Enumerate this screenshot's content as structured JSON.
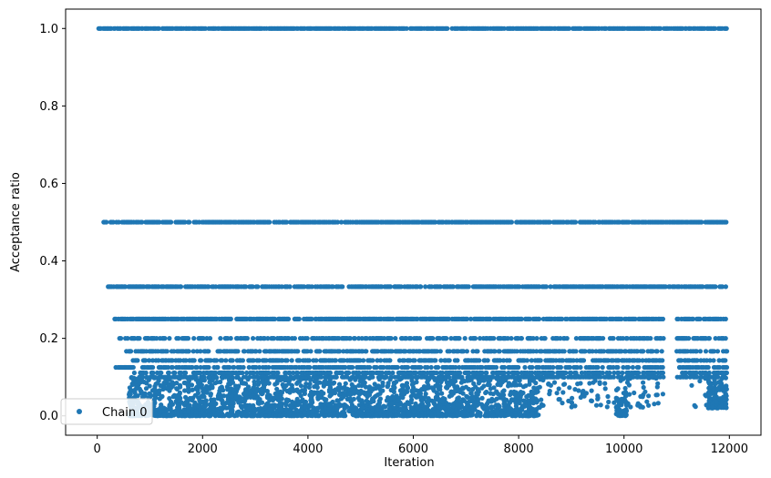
{
  "chart_data": {
    "type": "scatter",
    "xlabel": "Iteration",
    "ylabel": "Acceptance ratio",
    "xlim": [
      -600,
      12600
    ],
    "ylim": [
      -0.05,
      1.05
    ],
    "xticks": [
      0,
      2000,
      4000,
      6000,
      8000,
      10000,
      12000
    ],
    "xtick_labels": [
      "0",
      "2000",
      "4000",
      "6000",
      "8000",
      "10000",
      "12000"
    ],
    "yticks": [
      0.0,
      0.2,
      0.4,
      0.6,
      0.8,
      1.0
    ],
    "ytick_labels": [
      "0.0",
      "0.2",
      "0.4",
      "0.6",
      "0.8",
      "1.0"
    ],
    "grid": false,
    "legend": {
      "position": "lower-left",
      "entries": [
        "Chain 0"
      ]
    },
    "series": [
      {
        "name": "Chain 0",
        "color": "#1f77b4",
        "marker": "circle",
        "x_range": [
          0,
          11950
        ],
        "discrete_levels": [
          1.0,
          0.5,
          0.3333,
          0.25,
          0.2,
          0.1667,
          0.1429,
          0.125,
          0.1111,
          0.1
        ],
        "level_x_spans": [
          {
            "y": 1.0,
            "x": [
              0,
              11950
            ]
          },
          {
            "y": 0.5,
            "x": [
              120,
              11950
            ]
          },
          {
            "y": 0.3333,
            "x": [
              200,
              11950
            ]
          },
          {
            "y": 0.25,
            "x": [
              330,
              11950
            ]
          },
          {
            "y": 0.2,
            "x": [
              400,
              11950
            ]
          },
          {
            "y": 0.1667,
            "x": [
              550,
              11950
            ]
          },
          {
            "y": 0.1429,
            "x": [
              650,
              11950
            ]
          },
          {
            "y": 0.125,
            "x": [
              350,
              11950
            ]
          },
          {
            "y": 0.1111,
            "x": [
              700,
              11950
            ]
          },
          {
            "y": 0.1,
            "x": [
              800,
              11950
            ]
          }
        ],
        "dense_low_clusters": [
          {
            "x": [
              600,
              3000
            ],
            "y": [
              0.0,
              0.1
            ]
          },
          {
            "x": [
              3000,
              6200
            ],
            "y": [
              0.0,
              0.1
            ]
          },
          {
            "x": [
              6200,
              8400
            ],
            "y": [
              0.0,
              0.1
            ]
          },
          {
            "x": [
              9850,
              10050
            ],
            "y": [
              0.0,
              0.08
            ]
          },
          {
            "x": [
              11600,
              11950
            ],
            "y": [
              0.02,
              0.1
            ]
          }
        ]
      }
    ]
  }
}
